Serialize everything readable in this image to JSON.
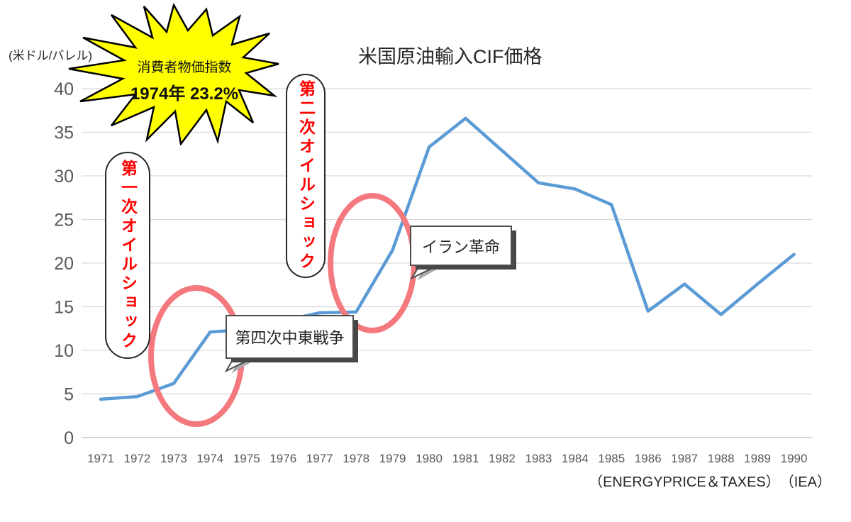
{
  "header": {
    "title": "米国原油輸入CIF価格",
    "y_unit_label": "(米ドル/バレル)"
  },
  "source_note": "（ENERGYPRICE＆TAXES）　（IEA）",
  "annotations": {
    "cpi_burst": {
      "line1": "消費者物価指数",
      "line2": "1974年 23.2%"
    },
    "first_oil_shock": "第一次オイルショック",
    "second_oil_shock": "第二次オイルショック",
    "yom_kippur_war": "第四次中東戦争",
    "iranian_revolution": "イラン革命"
  },
  "colors": {
    "line": "#5B9BD5",
    "highlight_ellipse": "#F4797F",
    "burst_fill": "#FFFF00",
    "burst_outline": "#000000",
    "annotation_red": "#FF0000",
    "tick_text": "#595959",
    "gridline": "#D9D9D9",
    "axis_line": "#BFBFBF"
  },
  "chart_data": {
    "type": "line",
    "title": "米国原油輸入CIF価格",
    "x": [
      1971,
      1972,
      1973,
      1974,
      1975,
      1976,
      1977,
      1978,
      1979,
      1980,
      1981,
      1982,
      1983,
      1984,
      1985,
      1986,
      1987,
      1988,
      1989,
      1990
    ],
    "series": [
      {
        "name": "米国原油輸入CIF価格",
        "values": [
          4.4,
          4.7,
          6.2,
          12.1,
          12.4,
          13.4,
          14.3,
          14.4,
          21.5,
          33.3,
          36.6,
          32.9,
          29.2,
          28.5,
          26.7,
          14.5,
          17.6,
          14.1,
          17.6,
          21.0
        ]
      }
    ],
    "ylabel": "米ドル/バレル",
    "ylim": [
      0,
      40
    ],
    "ytick_step": 5,
    "yticks": [
      0,
      5,
      10,
      15,
      20,
      25,
      30,
      35,
      40
    ],
    "grid": true,
    "legend": false,
    "line_color": "#5B9BD5"
  }
}
